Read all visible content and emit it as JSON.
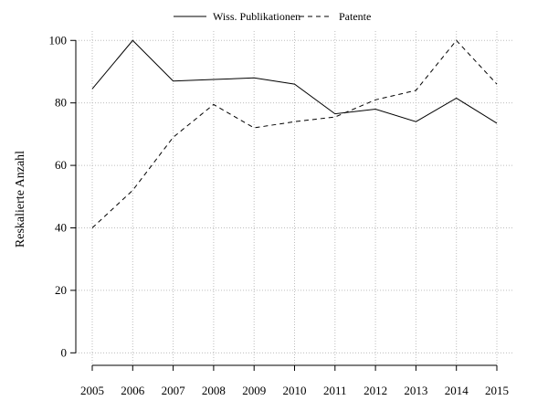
{
  "chart_data": {
    "type": "line",
    "title": "",
    "xlabel": "",
    "ylabel": "Reskalierte Anzahl",
    "x": [
      "2005",
      "2006",
      "2007",
      "2008",
      "2009",
      "2010",
      "2011",
      "2012",
      "2013",
      "2014",
      "2015"
    ],
    "ylim": [
      -4,
      103
    ],
    "yticks": [
      0,
      20,
      40,
      60,
      80,
      100
    ],
    "grid": true,
    "legend": "top-center",
    "series": [
      {
        "name": "Wiss. Publikationen",
        "style": "solid",
        "color": "#000000",
        "values": [
          84.5,
          100,
          87,
          87.5,
          88,
          86,
          76.5,
          78,
          74,
          81.5,
          73.5
        ]
      },
      {
        "name": "Patente",
        "style": "dashed",
        "color": "#000000",
        "values": [
          40,
          52,
          69,
          79.5,
          72,
          74,
          75.5,
          81,
          84,
          100,
          86
        ]
      }
    ]
  }
}
